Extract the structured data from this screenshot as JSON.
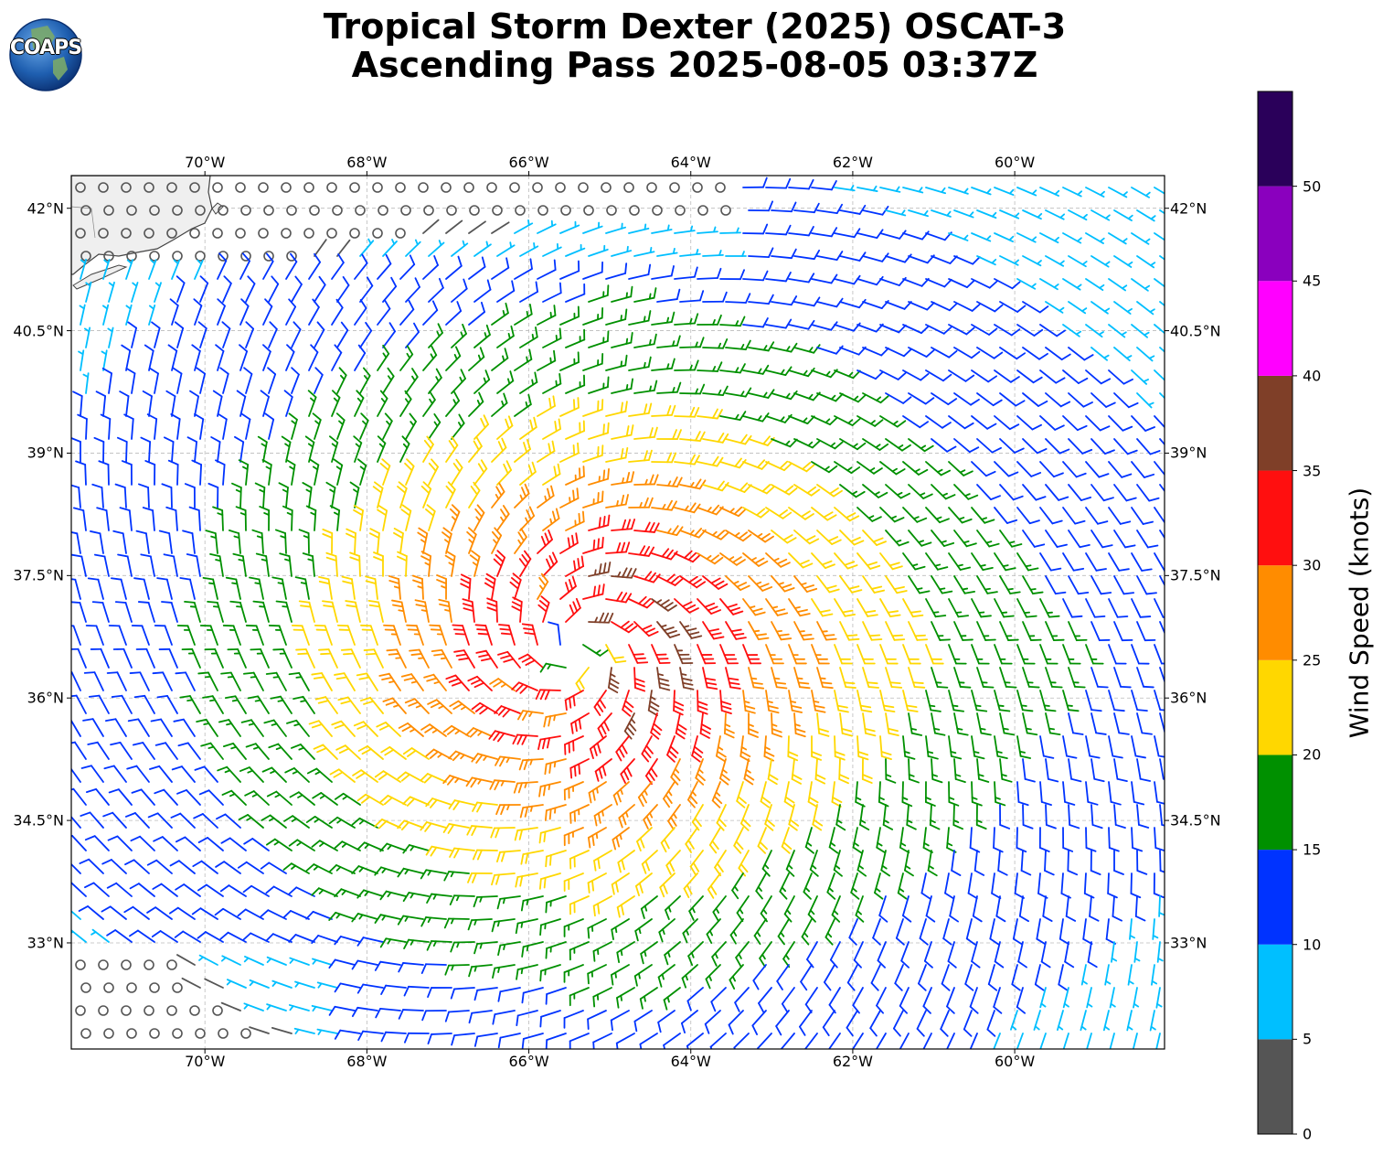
{
  "title": {
    "line1": "Tropical Storm Dexter (2025) OSCAT-3",
    "line2": "Ascending Pass 2025-08-05 03:37Z"
  },
  "logo": {
    "text": "COAPS",
    "icon": "globe-icon"
  },
  "map": {
    "lon_range": [
      -71.65,
      -58.15
    ],
    "lat_range": [
      31.7,
      42.4
    ],
    "storm_center": {
      "lon": -65.4,
      "lat": 36.6
    },
    "lon_ticks": [
      {
        "value": -70,
        "label": "70°W"
      },
      {
        "value": -68,
        "label": "68°W"
      },
      {
        "value": -66,
        "label": "66°W"
      },
      {
        "value": -64,
        "label": "64°W"
      },
      {
        "value": -62,
        "label": "62°W"
      },
      {
        "value": -60,
        "label": "60°W"
      }
    ],
    "lat_ticks": [
      {
        "value": 42,
        "label": "42°N"
      },
      {
        "value": 40.5,
        "label": "40.5°N"
      },
      {
        "value": 39,
        "label": "39°N"
      },
      {
        "value": 37.5,
        "label": "37.5°N"
      },
      {
        "value": 36,
        "label": "36°N"
      },
      {
        "value": 34.5,
        "label": "34.5°N"
      },
      {
        "value": 33,
        "label": "33°N"
      }
    ],
    "grid": true
  },
  "colorbar": {
    "label": "Wind Speed (knots)",
    "ticks": [
      "0",
      "5",
      "10",
      "15",
      "20",
      "25",
      "30",
      "35",
      "40",
      "45",
      "50"
    ],
    "bins": [
      {
        "min": 0,
        "max": 5,
        "color": "#555555"
      },
      {
        "min": 5,
        "max": 10,
        "color": "#00bfff"
      },
      {
        "min": 10,
        "max": 15,
        "color": "#0033ff"
      },
      {
        "min": 15,
        "max": 20,
        "color": "#009000"
      },
      {
        "min": 20,
        "max": 25,
        "color": "#ffd700"
      },
      {
        "min": 25,
        "max": 30,
        "color": "#ff8c00"
      },
      {
        "min": 30,
        "max": 35,
        "color": "#ff0f0f"
      },
      {
        "min": 35,
        "max": 40,
        "color": "#7f3f28"
      },
      {
        "min": 40,
        "max": 45,
        "color": "#ff00ff"
      },
      {
        "min": 45,
        "max": 50,
        "color": "#8a00be"
      },
      {
        "min": 50,
        "max": 55,
        "color": "#2a005a"
      }
    ]
  }
}
